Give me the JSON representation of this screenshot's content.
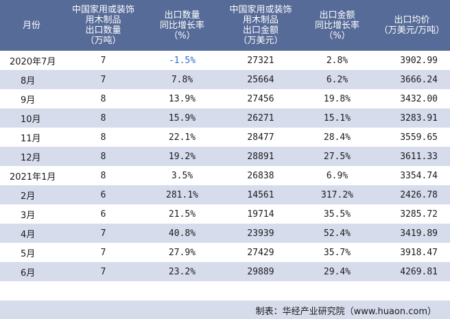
{
  "table": {
    "headers": [
      "月份",
      "中国家用或装饰\n用木制品\n出口数量\n（万吨）",
      "出口数量\n同比增长率\n（%）",
      "中国家用或装饰\n用木制品\n出口金额\n（万美元）",
      "出口金额\n同比增长率\n（%）",
      "出口均价\n（万美元/万吨）"
    ],
    "rows": [
      [
        "2020年7月",
        "7",
        "-1.5%",
        "27321",
        "2.8%",
        "3902.99"
      ],
      [
        "8月",
        "7",
        "7.8%",
        "25664",
        "6.2%",
        "3666.24"
      ],
      [
        "9月",
        "8",
        "13.9%",
        "27456",
        "19.8%",
        "3432.00"
      ],
      [
        "10月",
        "8",
        "15.9%",
        "26271",
        "15.1%",
        "3283.91"
      ],
      [
        "11月",
        "8",
        "22.1%",
        "28477",
        "28.4%",
        "3559.65"
      ],
      [
        "12月",
        "8",
        "19.2%",
        "28891",
        "27.5%",
        "3611.33"
      ],
      [
        "2021年1月",
        "8",
        "3.5%",
        "26838",
        "6.9%",
        "3354.74"
      ],
      [
        "2月",
        "6",
        "281.1%",
        "14561",
        "317.2%",
        "2426.78"
      ],
      [
        "3月",
        "6",
        "21.5%",
        "19714",
        "35.5%",
        "3285.72"
      ],
      [
        "4月",
        "7",
        "40.8%",
        "23939",
        "52.4%",
        "3419.89"
      ],
      [
        "5月",
        "7",
        "27.9%",
        "27429",
        "35.7%",
        "3918.47"
      ],
      [
        "6月",
        "7",
        "23.2%",
        "29889",
        "29.4%",
        "4269.81"
      ]
    ]
  },
  "footer": {
    "source": "制表：华经产业研究院（www.huaon.com）"
  },
  "colors": {
    "header_bg": "#566b97",
    "stripe_bg": "#d6dcec",
    "negative_text": "#2f6fd0"
  }
}
